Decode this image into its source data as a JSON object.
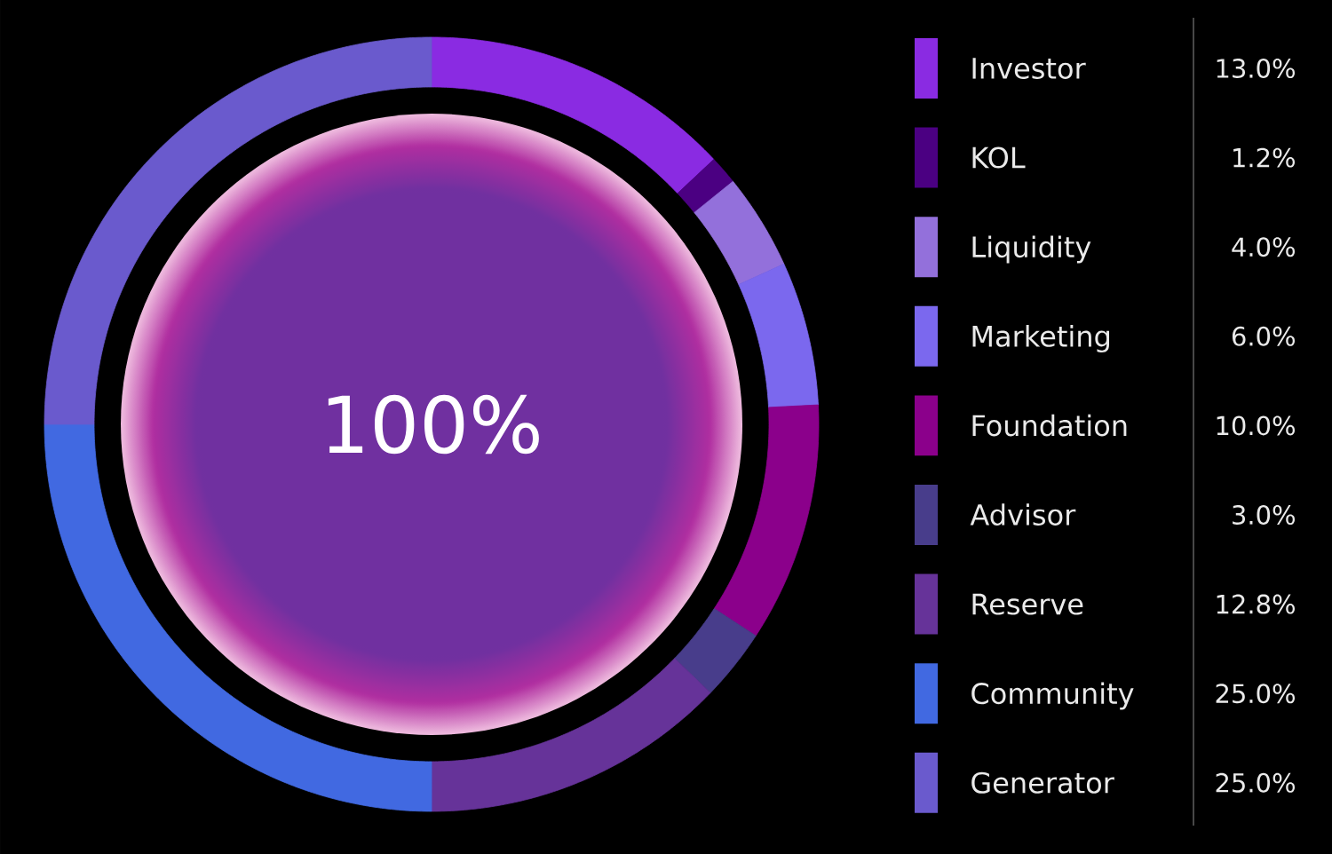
{
  "chart_data": {
    "type": "donut",
    "categories": [
      "Investor",
      "KOL",
      "Liquidity",
      "Marketing",
      "Foundation",
      "Advisor",
      "Reserve",
      "Community",
      "Generator"
    ],
    "values": [
      13.0,
      1.2,
      4.0,
      6.0,
      10.0,
      3.0,
      12.8,
      25.0,
      25.0
    ],
    "colors": [
      "#8a2be2",
      "#4b0082",
      "#9370db",
      "#7b68ee",
      "#8b008b",
      "#483d8b",
      "#663399",
      "#4169e1",
      "#6a5acd"
    ],
    "value_labels": [
      "13.0%",
      "1.2%",
      "4.0%",
      "6.0%",
      "10.0%",
      "3.0%",
      "12.8%",
      "25.0%",
      "25.0%"
    ],
    "annotations": [
      "100%"
    ],
    "legend": "right"
  }
}
